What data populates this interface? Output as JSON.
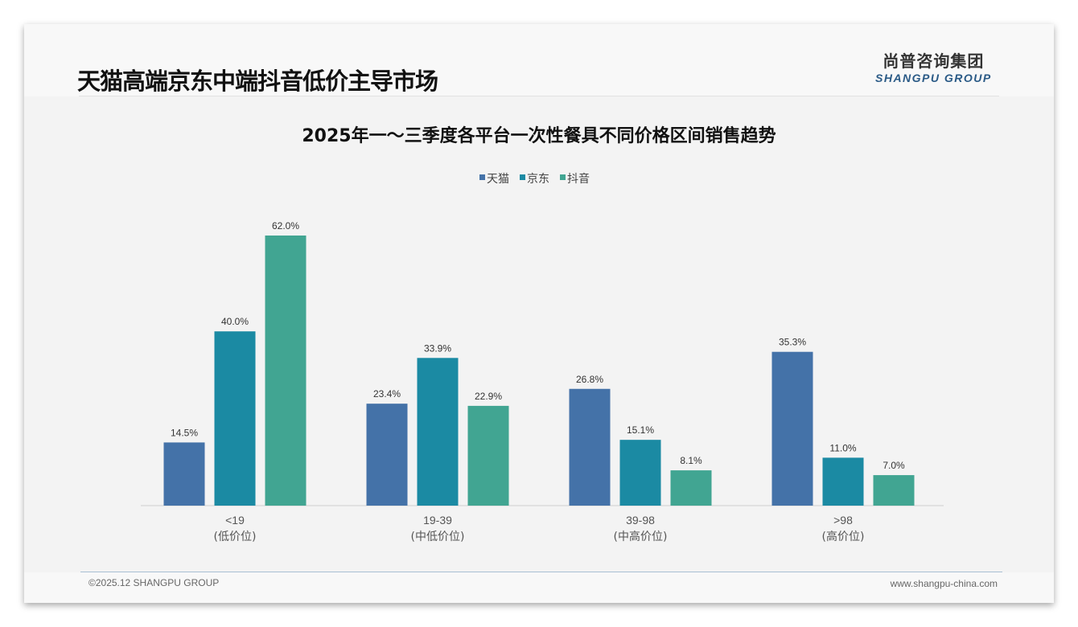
{
  "header": {
    "title": "天猫高端京东中端抖音低价主导市场",
    "logo_cn": "尚普咨询集团",
    "logo_en": "SHANGPU GROUP"
  },
  "footer": {
    "copyright": "©2025.12 SHANGPU GROUP",
    "website": "www.shangpu-china.com"
  },
  "colors": {
    "天猫": "#4472a8",
    "京东": "#1b8aa3",
    "抖音": "#41a592"
  },
  "chart_data": {
    "type": "bar",
    "title": "2025年一～三季度各平台一次性餐具不同价格区间销售趋势",
    "categories": [
      "<19",
      "19-39",
      "39-98",
      ">98"
    ],
    "category_sublabels": [
      "(低价位)",
      "(中低价位)",
      "(中高价位)",
      "(高价位)"
    ],
    "series": [
      {
        "name": "天猫",
        "values": [
          14.5,
          23.4,
          26.8,
          35.3
        ]
      },
      {
        "name": "京东",
        "values": [
          40.0,
          33.9,
          15.1,
          11.0
        ]
      },
      {
        "name": "抖音",
        "values": [
          62.0,
          22.9,
          8.1,
          7.0
        ]
      }
    ],
    "value_format": "percent_1dp",
    "ylim": [
      0,
      62
    ],
    "legend": "top-center",
    "grid": false,
    "xlabel": "",
    "ylabel": ""
  }
}
